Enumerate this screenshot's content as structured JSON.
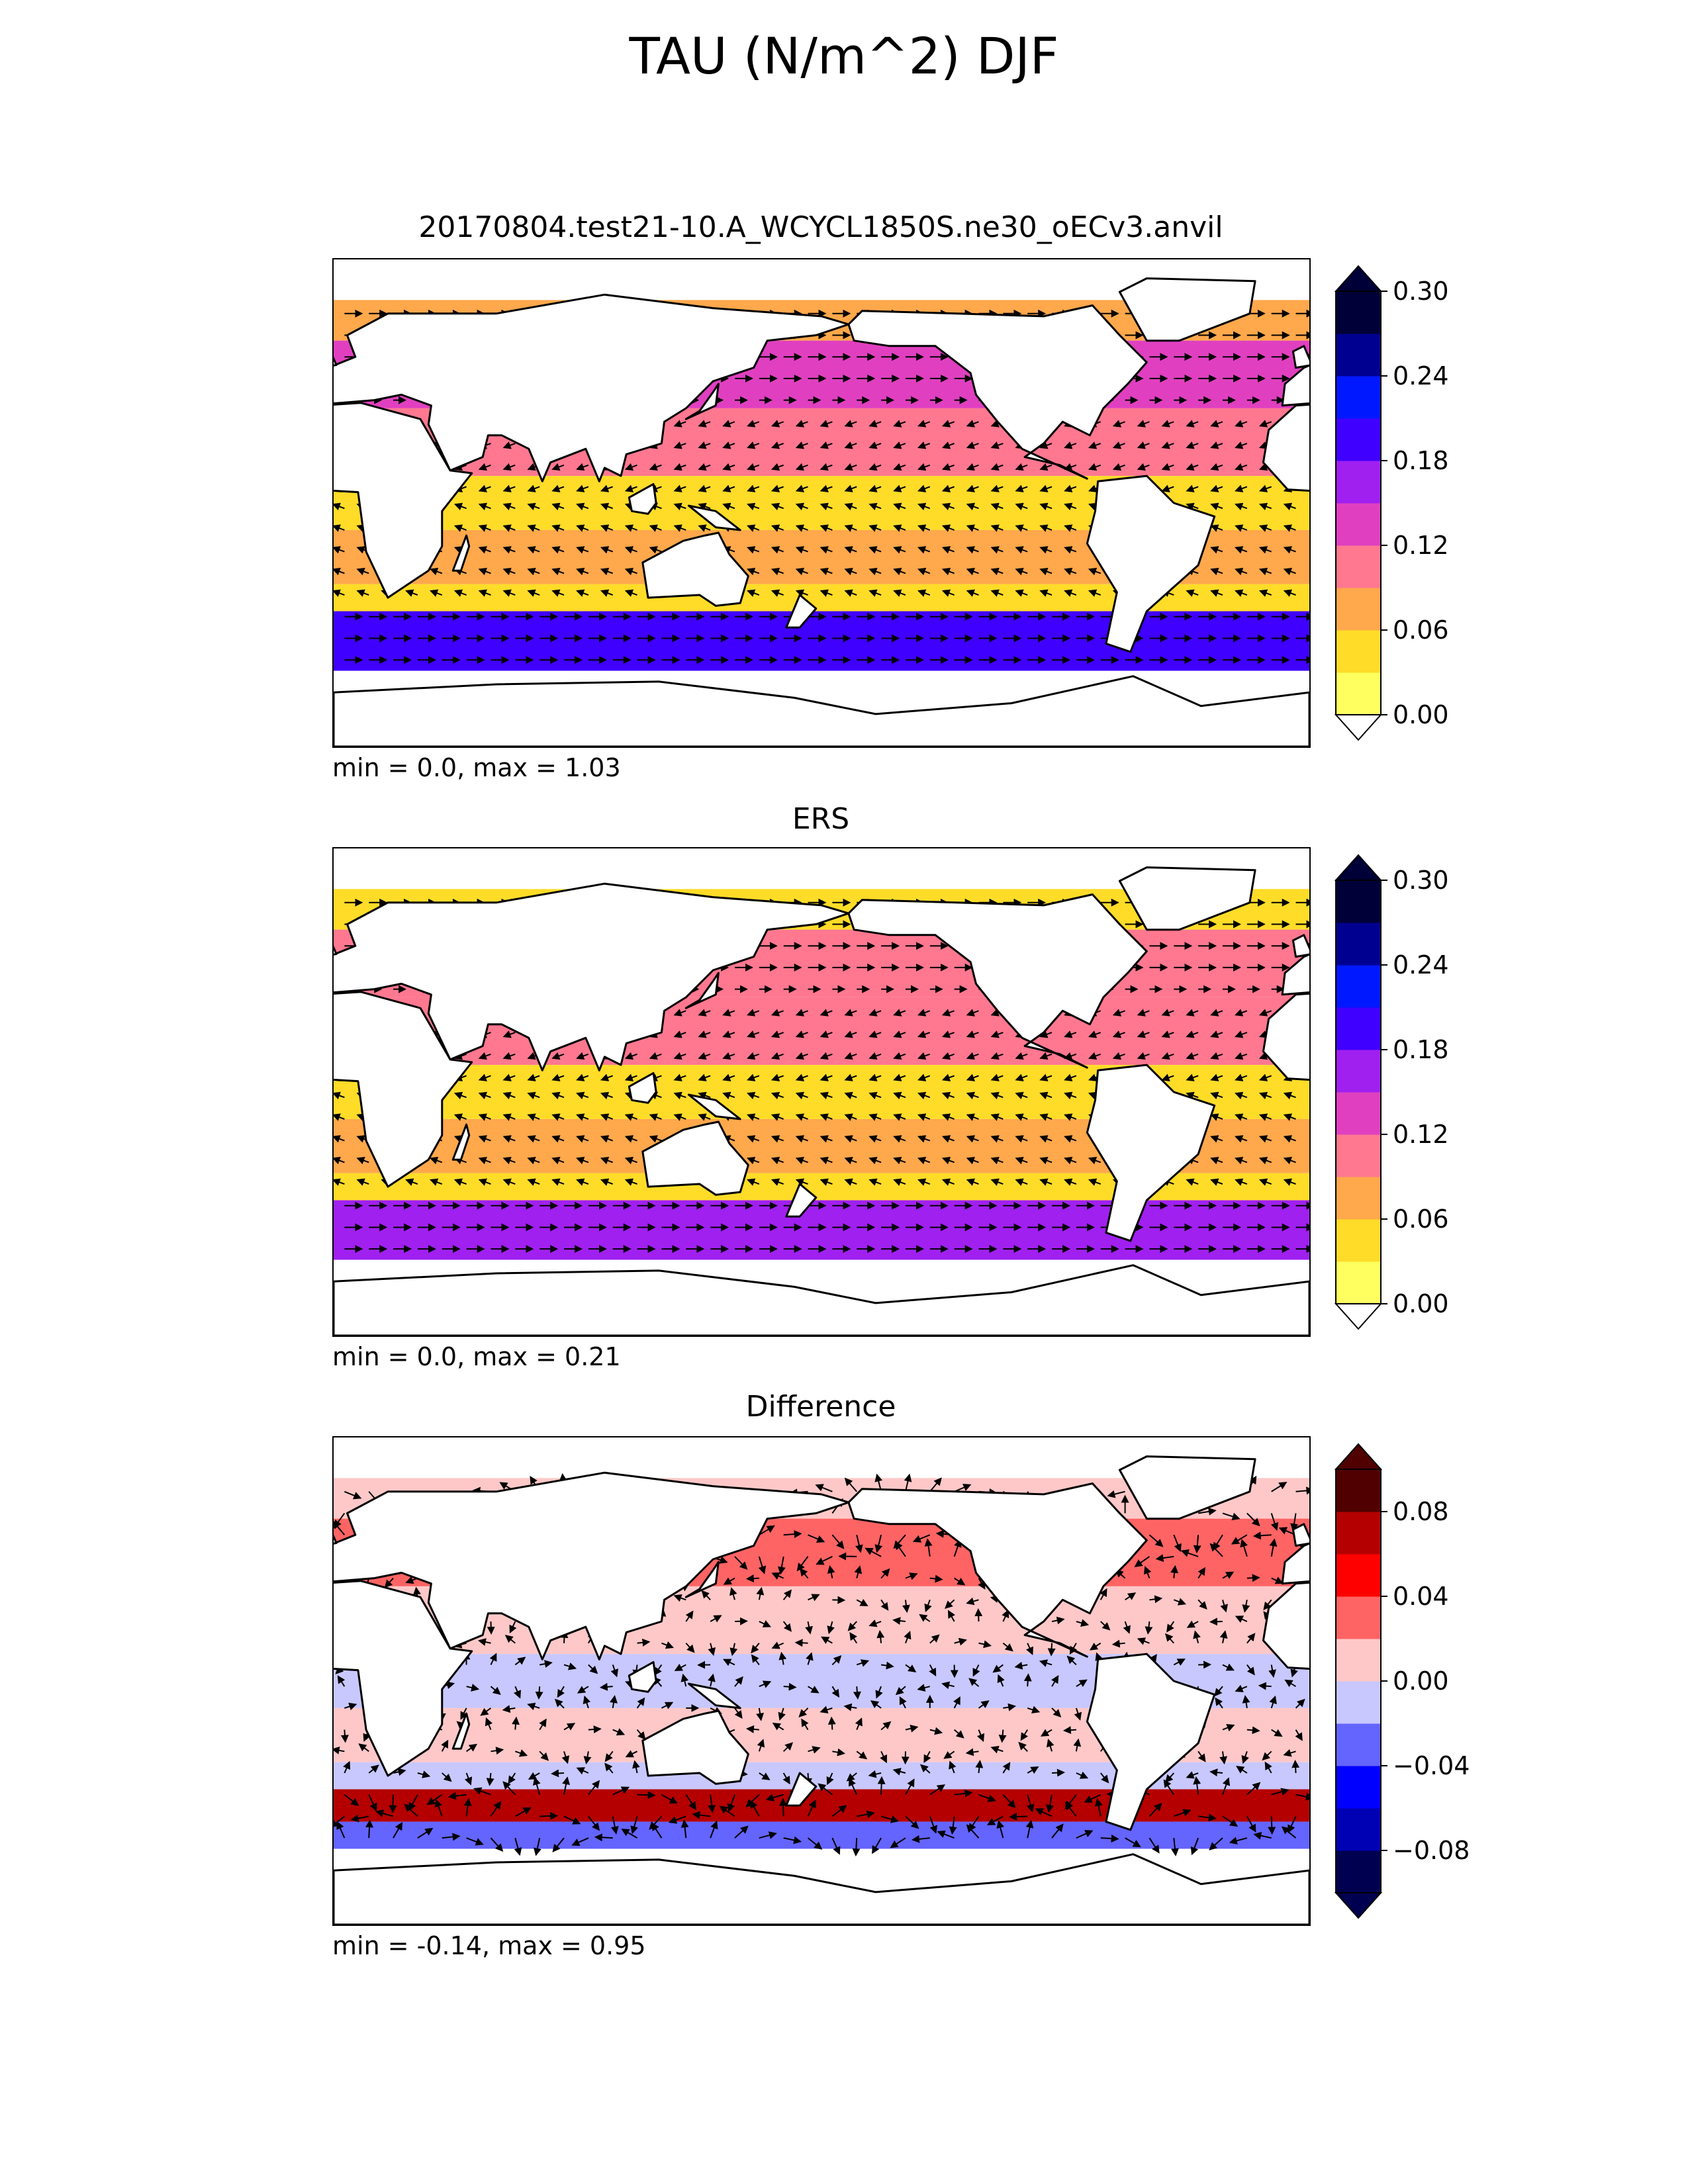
{
  "figure_title": "TAU (N/m^2) DJF",
  "colors": {
    "seq": [
      "#ffff60",
      "#ffdc28",
      "#ffa84c",
      "#ff7890",
      "#e040c0",
      "#a020f0",
      "#4000ff",
      "#0018ff",
      "#000090",
      "#000038"
    ],
    "div": [
      "#000050",
      "#0000b4",
      "#0000ff",
      "#6464ff",
      "#c8c8ff",
      "#ffc8c8",
      "#ff6464",
      "#ff0000",
      "#b40000",
      "#500000"
    ],
    "land": "#ffffff",
    "coast": "#000000"
  },
  "chart_data": [
    {
      "type": "heatmap",
      "subtype": "filled contour map with wind-stress vectors",
      "title": "20170804.test21-10.A_WCYCL1850S.ne30_oECv3.anvil",
      "stats": "min = 0.0, max = 1.03",
      "variable": "TAU (N/m^2)",
      "season": "DJF",
      "colorbar": {
        "levels": [
          0.0,
          0.03,
          0.06,
          0.09,
          0.12,
          0.15,
          0.18,
          0.21,
          0.24,
          0.27,
          0.3
        ],
        "tick_labels": [
          "0.00",
          "0.06",
          "0.12",
          "0.18",
          "0.24",
          "0.30"
        ],
        "extend": "both",
        "palette": "seq"
      },
      "bands": [
        {
          "lat_range": [
            60,
            75
          ],
          "approx_value": 0.06
        },
        {
          "lat_range": [
            35,
            60
          ],
          "approx_value": 0.13
        },
        {
          "lat_range": [
            10,
            35
          ],
          "approx_value": 0.1
        },
        {
          "lat_range": [
            -10,
            10
          ],
          "approx_value": 0.04
        },
        {
          "lat_range": [
            -30,
            -10
          ],
          "approx_value": 0.08
        },
        {
          "lat_range": [
            -40,
            -30
          ],
          "approx_value": 0.05
        },
        {
          "lat_range": [
            -62,
            -40
          ],
          "approx_value": 0.2
        }
      ]
    },
    {
      "type": "heatmap",
      "subtype": "filled contour map with wind-stress vectors",
      "title": "ERS",
      "stats": "min = 0.0, max = 0.21",
      "variable": "TAU (N/m^2)",
      "season": "DJF",
      "colorbar": {
        "levels": [
          0.0,
          0.03,
          0.06,
          0.09,
          0.12,
          0.15,
          0.18,
          0.21,
          0.24,
          0.27,
          0.3
        ],
        "tick_labels": [
          "0.00",
          "0.06",
          "0.12",
          "0.18",
          "0.24",
          "0.30"
        ],
        "extend": "both",
        "palette": "seq"
      },
      "bands": [
        {
          "lat_range": [
            60,
            75
          ],
          "approx_value": 0.04
        },
        {
          "lat_range": [
            35,
            60
          ],
          "approx_value": 0.11
        },
        {
          "lat_range": [
            10,
            35
          ],
          "approx_value": 0.09
        },
        {
          "lat_range": [
            -10,
            10
          ],
          "approx_value": 0.04
        },
        {
          "lat_range": [
            -30,
            -10
          ],
          "approx_value": 0.07
        },
        {
          "lat_range": [
            -40,
            -30
          ],
          "approx_value": 0.05
        },
        {
          "lat_range": [
            -62,
            -40
          ],
          "approx_value": 0.15
        }
      ]
    },
    {
      "type": "heatmap",
      "subtype": "filled contour map with wind-stress vectors",
      "title": "Difference",
      "stats": "min = -0.14, max = 0.95",
      "variable": "TAU (N/m^2)",
      "season": "DJF",
      "colorbar": {
        "levels": [
          -0.1,
          -0.08,
          -0.06,
          -0.04,
          -0.02,
          0.0,
          0.02,
          0.04,
          0.06,
          0.08,
          0.1
        ],
        "tick_labels": [
          "−0.08",
          "−0.04",
          "0.00",
          "0.04",
          "0.08"
        ],
        "extend": "both",
        "palette": "div"
      },
      "bands": [
        {
          "lat_range": [
            60,
            75
          ],
          "approx_value": 0.01
        },
        {
          "lat_range": [
            35,
            60
          ],
          "approx_value": 0.02
        },
        {
          "lat_range": [
            10,
            35
          ],
          "approx_value": 0.01
        },
        {
          "lat_range": [
            -10,
            10
          ],
          "approx_value": -0.01
        },
        {
          "lat_range": [
            -30,
            -10
          ],
          "approx_value": 0.01
        },
        {
          "lat_range": [
            -40,
            -30
          ],
          "approx_value": -0.02
        },
        {
          "lat_range": [
            -52,
            -40
          ],
          "approx_value": 0.06
        },
        {
          "lat_range": [
            -62,
            -52
          ],
          "approx_value": -0.03
        }
      ]
    }
  ]
}
